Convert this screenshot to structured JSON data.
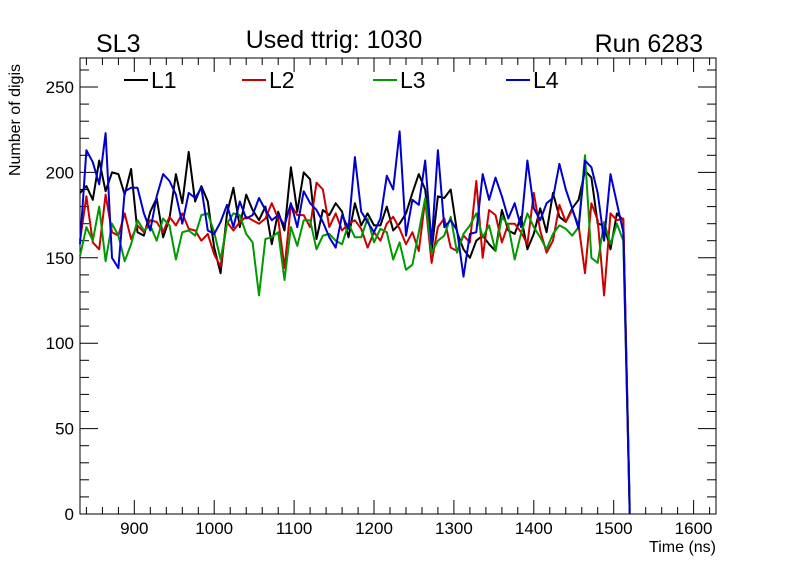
{
  "header": {
    "left": "SL3",
    "center": "Used ttrig: 1030",
    "right": "Run 6283"
  },
  "chart_data": {
    "type": "line",
    "title": "Used ttrig: 1030",
    "xlabel": "Time (ns)",
    "ylabel": "Number of digis",
    "xlim": [
      832,
      1628
    ],
    "ylim": [
      0,
      267
    ],
    "grid": false,
    "legend_position": "top",
    "x_ticks": [
      900,
      1000,
      1100,
      1200,
      1300,
      1400,
      1500,
      1600
    ],
    "y_ticks": [
      0,
      50,
      100,
      150,
      200,
      250
    ],
    "x_start": 832,
    "x_step": 8,
    "series": [
      {
        "name": "L1",
        "color": "#000000",
        "values": [
          188,
          192,
          184,
          207,
          189,
          200,
          199,
          187,
          202,
          165,
          163,
          177,
          185,
          162,
          173,
          199,
          182,
          212,
          183,
          192,
          183,
          156,
          141,
          176,
          191,
          168,
          187,
          178,
          172,
          180,
          158,
          177,
          166,
          203,
          177,
          200,
          196,
          161,
          178,
          175,
          182,
          177,
          162,
          182,
          169,
          176,
          169,
          169,
          180,
          166,
          170,
          176,
          188,
          199,
          190,
          154,
          186,
          185,
          190,
          165,
          155,
          150,
          160,
          163,
          158,
          154,
          178,
          166,
          164,
          174,
          155,
          164,
          179,
          165,
          188,
          174,
          171,
          179,
          184,
          201,
          197,
          170,
          169,
          155,
          176,
          172,
          5
        ]
      },
      {
        "name": "L2",
        "color": "#cc0000",
        "values": [
          160,
          186,
          159,
          155,
          187,
          165,
          163,
          176,
          161,
          169,
          165,
          172,
          171,
          165,
          174,
          169,
          176,
          167,
          166,
          160,
          164,
          152,
          145,
          171,
          166,
          171,
          174,
          172,
          170,
          173,
          182,
          173,
          144,
          181,
          175,
          175,
          168,
          194,
          190,
          168,
          176,
          166,
          170,
          172,
          167,
          156,
          165,
          160,
          170,
          174,
          167,
          158,
          165,
          154,
          184,
          147,
          168,
          173,
          156,
          154,
          163,
          159,
          195,
          150,
          178,
          175,
          159,
          170,
          170,
          165,
          158,
          188,
          166,
          153,
          160,
          181,
          171,
          178,
          169,
          141,
          182,
          172,
          128,
          176,
          172,
          173,
          0
        ]
      },
      {
        "name": "L3",
        "color": "#009900",
        "values": [
          151,
          168,
          160,
          180,
          148,
          170,
          163,
          148,
          158,
          172,
          166,
          169,
          160,
          173,
          169,
          149,
          165,
          166,
          163,
          175,
          176,
          165,
          149,
          170,
          176,
          175,
          164,
          159,
          128,
          161,
          162,
          165,
          137,
          168,
          157,
          172,
          172,
          155,
          163,
          164,
          160,
          158,
          170,
          162,
          162,
          173,
          159,
          167,
          165,
          149,
          159,
          143,
          146,
          165,
          185,
          153,
          160,
          163,
          174,
          153,
          164,
          169,
          176,
          162,
          169,
          154,
          174,
          169,
          149,
          164,
          176,
          168,
          162,
          155,
          164,
          169,
          167,
          163,
          168,
          210,
          150,
          147,
          171,
          158,
          170,
          160,
          2
        ]
      },
      {
        "name": "L4",
        "color": "#0000cc",
        "values": [
          158,
          213,
          206,
          193,
          223,
          150,
          144,
          189,
          191,
          191,
          176,
          166,
          186,
          199,
          195,
          187,
          170,
          188,
          185,
          191,
          166,
          164,
          171,
          181,
          168,
          183,
          173,
          175,
          185,
          178,
          172,
          175,
          169,
          182,
          168,
          189,
          182,
          178,
          171,
          162,
          156,
          175,
          167,
          209,
          177,
          171,
          165,
          173,
          198,
          190,
          224,
          163,
          184,
          181,
          207,
          158,
          213,
          168,
          172,
          166,
          139,
          164,
          165,
          199,
          184,
          197,
          186,
          173,
          182,
          168,
          207,
          179,
          172,
          182,
          185,
          205,
          190,
          179,
          167,
          207,
          203,
          188,
          160,
          199,
          182,
          165,
          0
        ]
      }
    ]
  }
}
